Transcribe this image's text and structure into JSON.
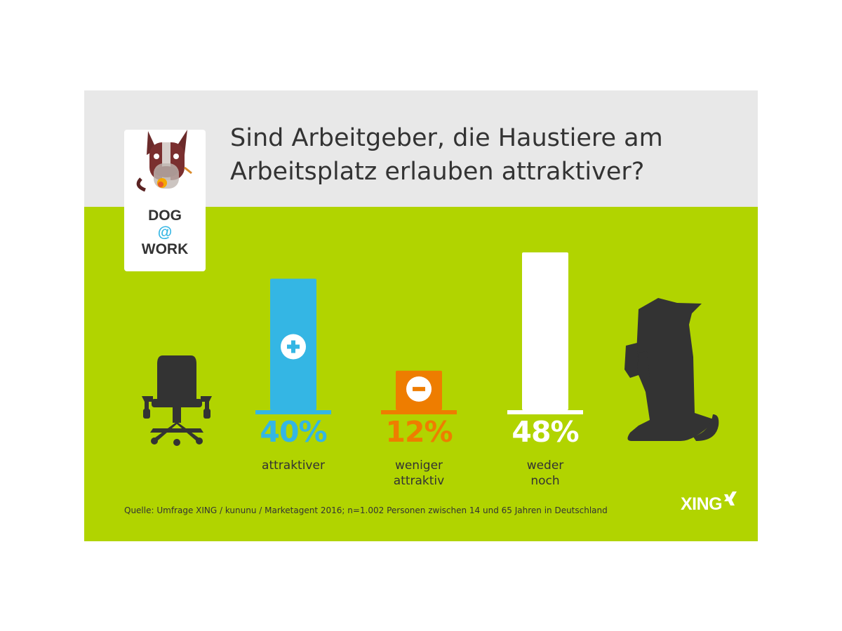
{
  "title": "Sind Arbeitgeber, die Haustiere am Arbeitsplatz erlauben attraktiver?",
  "logo": {
    "line1": "DOG",
    "line2": "@",
    "line3": "WORK"
  },
  "chart_data": {
    "type": "bar",
    "categories": [
      "attraktiver",
      "weniger\nattraktiv",
      "weder\nnoch"
    ],
    "values": [
      40,
      12,
      48
    ],
    "value_labels": [
      "40%",
      "12%",
      "48%"
    ],
    "unit": "%",
    "colors": [
      "#34b6e4",
      "#ee7d00",
      "#ffffff"
    ],
    "bar_icons": [
      "plus-icon",
      "minus-icon",
      ""
    ],
    "ylim": [
      0,
      48
    ]
  },
  "colors": {
    "header_bg": "#e8e8e8",
    "body_bg": "#b1d400",
    "text": "#333333",
    "silhouette": "#333333"
  },
  "decorations": {
    "left": "office-chair-icon",
    "right": "dog-silhouette-icon"
  },
  "source": "Quelle: Umfrage XING / kununu / Marketagent 2016; n=1.002 Personen zwischen 14 und 65 Jahren in Deutschland",
  "brand": {
    "name": "XING"
  }
}
